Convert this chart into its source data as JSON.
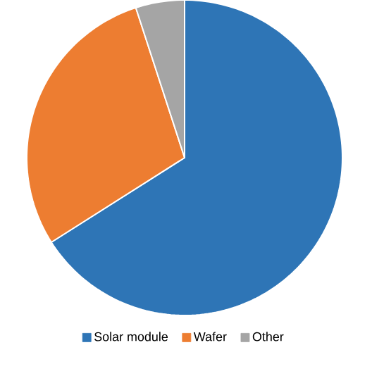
{
  "chart_data": {
    "type": "pie",
    "categories": [
      "Solar module",
      "Wafer",
      "Other"
    ],
    "values": [
      66,
      29,
      5
    ],
    "colors": [
      "#2e75b6",
      "#ed7d31",
      "#a5a5a5"
    ],
    "legend": "bottom"
  }
}
